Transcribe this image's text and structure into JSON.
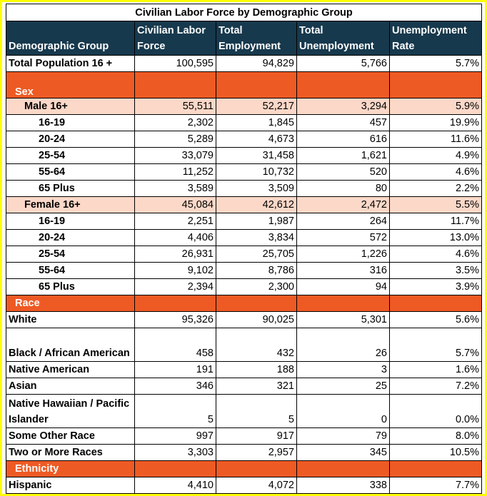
{
  "title": "Civilian Labor Force by Demographic Group",
  "headers": [
    "Demographic Group",
    "Civilian Labor Force",
    "Total Employment",
    "Total Unemployment",
    "Unemployment Rate"
  ],
  "colors": {
    "header_bg": "#17394d",
    "category_bg": "#ee5a24",
    "subgroup_bg": "#fbd8c8",
    "border": "#ffff00"
  },
  "total": {
    "label": "Total Population 16 +",
    "values": [
      "100,595",
      "94,829",
      "5,766",
      "5.7%"
    ]
  },
  "categories": {
    "sex": "Sex",
    "race": "Race",
    "ethnicity": "Ethnicity"
  },
  "male": {
    "label": "Male 16+",
    "values": [
      "55,511",
      "52,217",
      "3,294",
      "5.9%"
    ],
    "ages": [
      {
        "label": "16-19",
        "values": [
          "2,302",
          "1,845",
          "457",
          "19.9%"
        ]
      },
      {
        "label": "20-24",
        "values": [
          "5,289",
          "4,673",
          "616",
          "11.6%"
        ]
      },
      {
        "label": "25-54",
        "values": [
          "33,079",
          "31,458",
          "1,621",
          "4.9%"
        ]
      },
      {
        "label": "55-64",
        "values": [
          "11,252",
          "10,732",
          "520",
          "4.6%"
        ]
      },
      {
        "label": "65 Plus",
        "values": [
          "3,589",
          "3,509",
          "80",
          "2.2%"
        ]
      }
    ]
  },
  "female": {
    "label": "Female 16+",
    "values": [
      "45,084",
      "42,612",
      "2,472",
      "5.5%"
    ],
    "ages": [
      {
        "label": "16-19",
        "values": [
          "2,251",
          "1,987",
          "264",
          "11.7%"
        ]
      },
      {
        "label": "20-24",
        "values": [
          "4,406",
          "3,834",
          "572",
          "13.0%"
        ]
      },
      {
        "label": "25-54",
        "values": [
          "26,931",
          "25,705",
          "1,226",
          "4.6%"
        ]
      },
      {
        "label": "55-64",
        "values": [
          "9,102",
          "8,786",
          "316",
          "3.5%"
        ]
      },
      {
        "label": "65 Plus",
        "values": [
          "2,394",
          "2,300",
          "94",
          "3.9%"
        ]
      }
    ]
  },
  "race": [
    {
      "label": "White",
      "values": [
        "95,326",
        "90,025",
        "5,301",
        "5.6%"
      ]
    },
    {
      "label": "Black / African American",
      "values": [
        "458",
        "432",
        "26",
        "5.7%"
      ]
    },
    {
      "label": "Native American",
      "values": [
        "191",
        "188",
        "3",
        "1.6%"
      ]
    },
    {
      "label": "Asian",
      "values": [
        "346",
        "321",
        "25",
        "7.2%"
      ]
    },
    {
      "label": "Native Hawaiian / Pacific Islander",
      "values": [
        "5",
        "5",
        "0",
        "0.0%"
      ]
    },
    {
      "label": "Some Other Race",
      "values": [
        "997",
        "917",
        "79",
        "8.0%"
      ]
    },
    {
      "label": "Two or More Races",
      "values": [
        "3,303",
        "2,957",
        "345",
        "10.5%"
      ]
    }
  ],
  "ethnicity": [
    {
      "label": "Hispanic",
      "values": [
        "4,410",
        "4,072",
        "338",
        "7.7%"
      ]
    }
  ]
}
